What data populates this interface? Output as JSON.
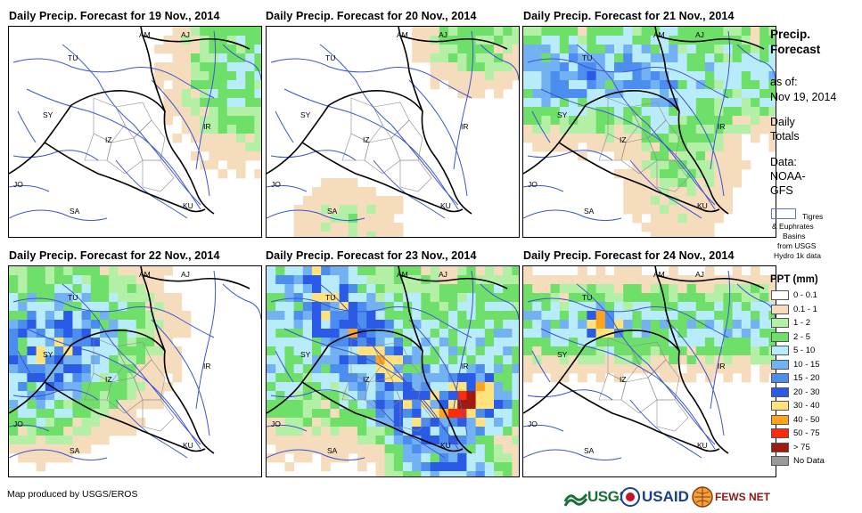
{
  "panels": [
    {
      "title": "Daily Precip. Forecast for 19 Nov., 2014"
    },
    {
      "title": "Daily Precip. Forecast for 20 Nov., 2014"
    },
    {
      "title": "Daily Precip. Forecast for 21 Nov., 2014"
    },
    {
      "title": "Daily Precip. Forecast for 22 Nov., 2014"
    },
    {
      "title": "Daily Precip. Forecast for 23 Nov., 2014"
    },
    {
      "title": "Daily Precip. Forecast for 24 Nov., 2014"
    }
  ],
  "map_labels": {
    "am": "AM",
    "aj": "AJ",
    "tu": "TU",
    "sy": "SY",
    "iz": "IZ",
    "ir": "IR",
    "jo": "JO",
    "sa": "SA",
    "ku": "KU"
  },
  "side": {
    "title_line1": "Precip.",
    "title_line2": "Forecast",
    "asof_label": "as of:",
    "asof_date": "Nov 19, 2014",
    "daily_line1": "Daily",
    "daily_line2": "Totals",
    "data_line1": "Data:",
    "data_line2": "NOAA-",
    "data_line3": "GFS",
    "basin_line1": "Tigres",
    "basin_line2": "& Euphrates",
    "basin_line3": "Basins",
    "basin_line4": "from USGS",
    "basin_line5": "Hydro 1k data"
  },
  "legend": {
    "title": "PPT (mm)",
    "items": [
      {
        "label": "0 - 0.1",
        "color": "#ffffff"
      },
      {
        "label": "0.1 - 1",
        "color": "#f5dcbc"
      },
      {
        "label": "1 - 2",
        "color": "#b3f0a6"
      },
      {
        "label": "2 - 5",
        "color": "#6ee06a"
      },
      {
        "label": "5 - 10",
        "color": "#b9ecfb"
      },
      {
        "label": "10 - 15",
        "color": "#73b2f2"
      },
      {
        "label": "15 - 20",
        "color": "#4c8ef0"
      },
      {
        "label": "20 - 30",
        "color": "#2a5be6"
      },
      {
        "label": "30 - 40",
        "color": "#ffe27a"
      },
      {
        "label": "40 - 50",
        "color": "#ffa21c"
      },
      {
        "label": "50 - 75",
        "color": "#ff2a0a"
      },
      {
        "label": "> 75",
        "color": "#a01a12"
      },
      {
        "label": "No Data",
        "color": "#9a9a9a"
      }
    ]
  },
  "footer": "Map produced by USGS/EROS",
  "logos": {
    "usgs": "USGS",
    "usaid": "USAID",
    "fewsnet": "FEWS NET"
  },
  "colors": {
    "river": "#3c55d0",
    "border": "#000000",
    "province": "#8c8c8c"
  }
}
